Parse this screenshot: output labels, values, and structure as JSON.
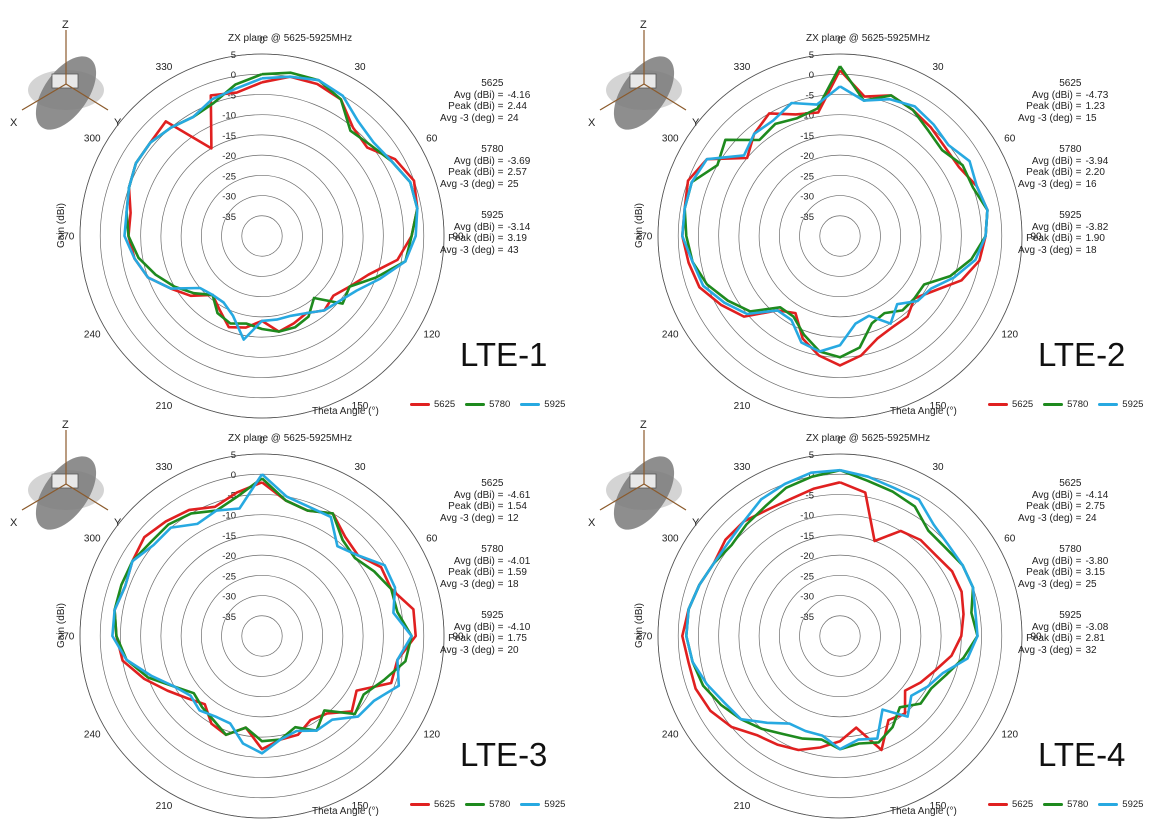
{
  "colors": {
    "5625": "#e02020",
    "5780": "#1e8a1e",
    "5925": "#27a9e1"
  },
  "legend": [
    "5625",
    "5780",
    "5925"
  ],
  "chart_data": [
    {
      "type": "polar-line",
      "title": "ZX plane @ 5625-5925MHz",
      "label": "LTE-1",
      "xlabel": "Theta Angle (°)",
      "ylabel": "Gain (dBi)",
      "rlim": [
        -40,
        5
      ],
      "r_ticks": [
        "5",
        "0",
        "-5",
        "-10",
        "-15",
        "-20",
        "-25",
        "-30",
        "-35"
      ],
      "angle_ticks": [
        "0",
        "30",
        "60",
        "90",
        "120",
        "150",
        "180",
        "210",
        "240",
        "270",
        "300",
        "330"
      ],
      "angles": [
        0,
        10,
        20,
        30,
        40,
        50,
        60,
        70,
        80,
        90,
        100,
        110,
        120,
        130,
        140,
        150,
        160,
        170,
        180,
        190,
        200,
        210,
        220,
        230,
        240,
        250,
        260,
        270,
        280,
        290,
        300,
        310,
        320,
        330,
        340,
        350
      ],
      "stats": [
        {
          "freq": "5625",
          "avg": "-4.16",
          "peak": "2.44",
          "avg3": "24"
        },
        {
          "freq": "5780",
          "avg": "-3.69",
          "peak": "2.57",
          "avg3": "25"
        },
        {
          "freq": "5925",
          "avg": "-3.14",
          "peak": "3.19",
          "avg3": "43"
        }
      ],
      "series": [
        {
          "name": "5625",
          "values": [
            -2,
            0,
            0,
            -1,
            -5,
            -6,
            -2,
            0,
            -1,
            -3,
            -6,
            -12,
            -15,
            -17,
            -16,
            -18,
            -17,
            -16,
            -19,
            -17,
            -16,
            -19,
            -21,
            -17,
            -14,
            -10,
            -8,
            -7,
            -7,
            -5,
            -4,
            -4,
            -3,
            -15,
            -3,
            -4
          ]
        },
        {
          "name": "5780",
          "values": [
            0,
            1,
            1,
            -1,
            -6,
            -5,
            -3,
            -1,
            -1,
            -3,
            -4,
            -10,
            -15,
            -14,
            -20,
            -17,
            -16,
            -16,
            -17,
            -18,
            -17,
            -18,
            -21,
            -18,
            -15,
            -12,
            -9,
            -7,
            -6,
            -5,
            -4,
            -4,
            -5,
            -6,
            -5,
            -2
          ]
        },
        {
          "name": "5925",
          "values": [
            -1,
            0,
            1,
            0,
            -3,
            -4,
            -3,
            -1,
            -1,
            -2,
            -4,
            -9,
            -13,
            -15,
            -16,
            -18,
            -19,
            -19,
            -19,
            -14,
            -19,
            -21,
            -21,
            -20,
            -14,
            -10,
            -8,
            -6,
            -6,
            -5,
            -4,
            -4,
            -5,
            -6,
            -4,
            -3
          ]
        }
      ]
    },
    {
      "type": "polar-line",
      "title": "ZX plane @ 5625-5925MHz",
      "label": "LTE-2",
      "xlabel": "Theta Angle (°)",
      "ylabel": "Gain (dBi)",
      "rlim": [
        -40,
        5
      ],
      "r_ticks": [
        "5",
        "0",
        "-5",
        "-10",
        "-15",
        "-20",
        "-25",
        "-30",
        "-35"
      ],
      "angle_ticks": [
        "0",
        "30",
        "60",
        "90",
        "120",
        "150",
        "180",
        "210",
        "240",
        "270",
        "300",
        "330"
      ],
      "angles": [
        0,
        10,
        20,
        30,
        40,
        50,
        60,
        70,
        80,
        90,
        100,
        110,
        120,
        130,
        140,
        150,
        160,
        170,
        180,
        190,
        200,
        210,
        220,
        230,
        240,
        250,
        260,
        270,
        280,
        290,
        300,
        310,
        320,
        330,
        340,
        350
      ],
      "stats": [
        {
          "freq": "5625",
          "avg": "-4.73",
          "peak": "1.23",
          "avg3": "15"
        },
        {
          "freq": "5780",
          "avg": "-3.94",
          "peak": "2.20",
          "avg3": "16"
        },
        {
          "freq": "5925",
          "avg": "-3.82",
          "peak": "1.90",
          "avg3": "18"
        }
      ],
      "series": [
        {
          "name": "5625",
          "values": [
            1,
            -5,
            -3,
            -4,
            -5,
            -6,
            -6,
            -4,
            -3,
            -4,
            -5,
            -8,
            -13,
            -16,
            -14,
            -14,
            -13,
            -10,
            -8,
            -10,
            -13,
            -18,
            -16,
            -9,
            -6,
            -3,
            -2,
            -1,
            -1,
            0,
            -2,
            -10,
            -7,
            -5,
            -8,
            -9
          ]
        },
        {
          "name": "5780",
          "values": [
            2,
            -6,
            -3,
            -4,
            -6,
            -7,
            -5,
            -5,
            -3,
            -4,
            -7,
            -11,
            -16,
            -16,
            -16,
            -18,
            -17,
            -12,
            -10,
            -11,
            -14,
            -17,
            -17,
            -11,
            -8,
            -5,
            -3,
            -2,
            -1,
            -1,
            -5,
            -3,
            -9,
            -8,
            -9,
            -8
          ]
        },
        {
          "name": "5925",
          "values": [
            -3,
            -6,
            -4,
            -3,
            -4,
            -5,
            -3,
            -4,
            -3,
            -4,
            -6,
            -10,
            -14,
            -15,
            -18,
            -15,
            -19,
            -18,
            -13,
            -11,
            -12,
            -16,
            -16,
            -10,
            -7,
            -4,
            -3,
            -1,
            -1,
            -1,
            -2,
            -9,
            -7,
            -7,
            -5,
            -7
          ]
        }
      ]
    },
    {
      "type": "polar-line",
      "title": "ZX plane @ 5625-5925MHz",
      "label": "LTE-3",
      "xlabel": "Theta Angle (°)",
      "ylabel": "Gain (dBi)",
      "rlim": [
        -40,
        5
      ],
      "r_ticks": [
        "5",
        "0",
        "-5",
        "-10",
        "-15",
        "-20",
        "-25",
        "-30",
        "-35"
      ],
      "angle_ticks": [
        "0",
        "30",
        "60",
        "90",
        "120",
        "150",
        "180",
        "210",
        "240",
        "270",
        "300",
        "330"
      ],
      "angles": [
        0,
        10,
        20,
        30,
        40,
        50,
        60,
        70,
        80,
        90,
        100,
        110,
        120,
        130,
        140,
        150,
        160,
        170,
        180,
        190,
        200,
        210,
        220,
        230,
        240,
        250,
        260,
        270,
        280,
        290,
        300,
        310,
        320,
        330,
        340,
        350
      ],
      "stats": [
        {
          "freq": "5625",
          "avg": "-4.61",
          "peak": "1.54",
          "avg3": "12"
        },
        {
          "freq": "5780",
          "avg": "-4.01",
          "peak": "1.59",
          "avg3": "18"
        },
        {
          "freq": "5925",
          "avg": "-4.10",
          "peak": "1.75",
          "avg3": "20"
        }
      ],
      "series": [
        {
          "name": "5625",
          "values": [
            -2,
            -6,
            -7,
            -5,
            -8,
            -9,
            -6,
            -6,
            -2,
            -2,
            -6,
            -6,
            -13,
            -11,
            -15,
            -16,
            -14,
            -14,
            -12,
            -17,
            -14,
            -15,
            -18,
            -16,
            -13,
            -9,
            -5,
            -4,
            -3,
            -4,
            -3,
            -2,
            -3,
            -4,
            -6,
            -4
          ]
        },
        {
          "name": "5780",
          "values": [
            -1,
            -6,
            -7,
            -5,
            -9,
            -10,
            -8,
            -6,
            -6,
            -3,
            -4,
            -8,
            -11,
            -10,
            -16,
            -13,
            -16,
            -14,
            -14,
            -17,
            -14,
            -16,
            -17,
            -18,
            -15,
            -10,
            -6,
            -4,
            -3,
            -3,
            -3,
            -4,
            -4,
            -5,
            -7,
            -5
          ]
        },
        {
          "name": "5925",
          "values": [
            0,
            -5,
            -6,
            -6,
            -11,
            -9,
            -5,
            -5,
            -7,
            -3,
            -6,
            -4,
            -8,
            -9,
            -13,
            -13,
            -15,
            -14,
            -11,
            -13,
            -17,
            -17,
            -16,
            -17,
            -15,
            -11,
            -6,
            -3,
            -3,
            -4,
            -3,
            -5,
            -5,
            -8,
            -7,
            -8
          ]
        }
      ]
    },
    {
      "type": "polar-line",
      "title": "ZX plane @ 5625-5925MHz",
      "label": "LTE-4",
      "xlabel": "Theta Angle (°)",
      "ylabel": "Gain (dBi)",
      "rlim": [
        -40,
        5
      ],
      "r_ticks": [
        "5",
        "0",
        "-5",
        "-10",
        "-15",
        "-20",
        "-25",
        "-30",
        "-35"
      ],
      "angle_ticks": [
        "0",
        "30",
        "60",
        "90",
        "120",
        "150",
        "180",
        "210",
        "240",
        "270",
        "300",
        "330"
      ],
      "angles": [
        0,
        10,
        20,
        30,
        40,
        50,
        60,
        70,
        80,
        90,
        100,
        110,
        120,
        130,
        140,
        150,
        160,
        170,
        180,
        190,
        200,
        210,
        220,
        230,
        240,
        250,
        260,
        270,
        280,
        290,
        300,
        310,
        320,
        330,
        340,
        350
      ],
      "stats": [
        {
          "freq": "5625",
          "avg": "-4.14",
          "peak": "2.75",
          "avg3": "24"
        },
        {
          "freq": "5780",
          "avg": "-3.80",
          "peak": "3.15",
          "avg3": "25"
        },
        {
          "freq": "5925",
          "avg": "-3.08",
          "peak": "2.81",
          "avg3": "32"
        }
      ],
      "series": [
        {
          "name": "5625",
          "values": [
            -2,
            -4,
            -15,
            -10,
            -9,
            -9,
            -8,
            -8,
            -9,
            -10,
            -12,
            -15,
            -17,
            -19,
            -15,
            -16,
            -10,
            -17,
            -14,
            -12,
            -10,
            -9,
            -8,
            -5,
            -3,
            -2,
            -2,
            -1,
            -2,
            -3,
            -4,
            -3,
            -3,
            -4,
            -4,
            -3
          ]
        },
        {
          "name": "5780",
          "values": [
            1,
            -1,
            -2,
            -3,
            -6,
            -6,
            -5,
            -5,
            -7,
            -6,
            -9,
            -12,
            -14,
            -14,
            -17,
            -14,
            -12,
            -13,
            -12,
            -14,
            -13,
            -12,
            -10,
            -8,
            -6,
            -4,
            -3,
            -2,
            -2,
            -3,
            -4,
            -5,
            -4,
            -3,
            -1,
            0
          ]
        },
        {
          "name": "5925",
          "values": [
            1,
            0,
            -1,
            -1,
            -4,
            -5,
            -5,
            -5,
            -6,
            -6,
            -8,
            -13,
            -15,
            -17,
            -14,
            -19,
            -13,
            -14,
            -12,
            -15,
            -15,
            -15,
            -12,
            -8,
            -7,
            -5,
            -3,
            -2,
            -2,
            -3,
            -4,
            -4,
            -3,
            -1,
            0,
            1
          ]
        }
      ]
    }
  ]
}
